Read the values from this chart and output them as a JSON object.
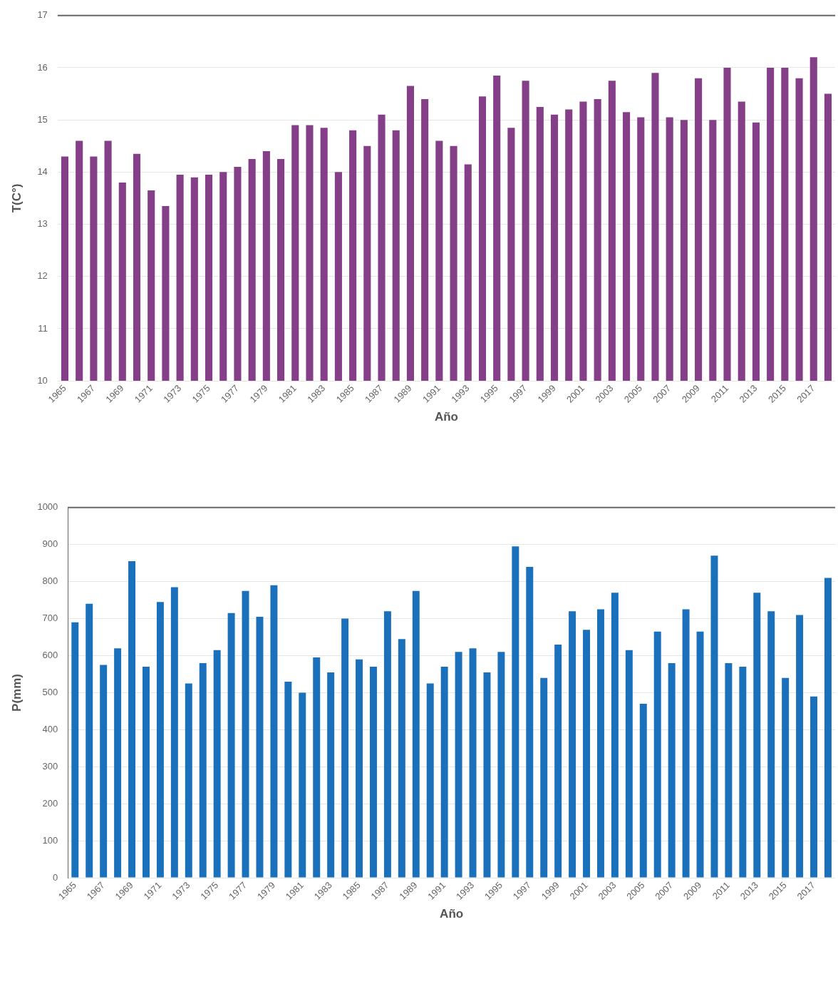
{
  "chart_data": [
    {
      "type": "bar",
      "xlabel": "Año",
      "ylabel": "T(C°)",
      "categories": [
        "1965",
        null,
        "1967",
        null,
        "1969",
        null,
        "1971",
        null,
        "1973",
        null,
        "1975",
        null,
        "1977",
        null,
        "1979",
        null,
        "1981",
        null,
        "1983",
        null,
        "1985",
        null,
        "1987",
        null,
        "1989",
        null,
        "1991",
        null,
        "1993",
        null,
        "1995",
        null,
        "1997",
        null,
        "1999",
        null,
        "2001",
        null,
        "2003",
        null,
        "2005",
        null,
        "2007",
        null,
        "2009",
        null,
        "2011",
        null,
        "2013",
        null,
        "2015",
        null,
        "2017",
        null
      ],
      "values": [
        14.3,
        14.6,
        14.3,
        14.6,
        13.8,
        14.35,
        13.65,
        13.35,
        13.95,
        13.9,
        13.95,
        14.0,
        14.1,
        14.25,
        14.4,
        14.25,
        14.9,
        14.9,
        14.85,
        14.0,
        14.8,
        14.5,
        15.1,
        14.8,
        15.65,
        15.4,
        14.6,
        14.5,
        14.15,
        15.45,
        15.85,
        14.85,
        15.75,
        15.25,
        15.1,
        15.2,
        15.35,
        15.4,
        15.75,
        15.15,
        15.05,
        15.9,
        15.05,
        15.0,
        15.8,
        15.0,
        16.0,
        15.35,
        14.95,
        16.0,
        16.0,
        15.8,
        16.2,
        15.5
      ],
      "color": "#843f88",
      "ylim": [
        10,
        17
      ],
      "yticks": [
        10,
        11,
        12,
        13,
        14,
        15,
        16,
        17
      ],
      "grid": "y"
    },
    {
      "type": "bar",
      "xlabel": "Año",
      "ylabel": "P(mm)",
      "categories": [
        "1965",
        null,
        "1967",
        null,
        "1969",
        null,
        "1971",
        null,
        "1973",
        null,
        "1975",
        null,
        "1977",
        null,
        "1979",
        null,
        "1981",
        null,
        "1983",
        null,
        "1985",
        null,
        "1987",
        null,
        "1989",
        null,
        "1991",
        null,
        "1993",
        null,
        "1995",
        null,
        "1997",
        null,
        "1999",
        null,
        "2001",
        null,
        "2003",
        null,
        "2005",
        null,
        "2007",
        null,
        "2009",
        null,
        "2011",
        null,
        "2013",
        null,
        "2015",
        null,
        "2017",
        null
      ],
      "values": [
        690,
        740,
        575,
        620,
        855,
        570,
        745,
        785,
        525,
        580,
        615,
        715,
        775,
        705,
        790,
        530,
        500,
        595,
        555,
        700,
        590,
        570,
        720,
        645,
        775,
        525,
        570,
        610,
        620,
        555,
        610,
        895,
        840,
        540,
        630,
        720,
        670,
        725,
        770,
        615,
        470,
        665,
        580,
        725,
        665,
        870,
        580,
        570,
        770,
        720,
        540,
        710,
        490,
        810
      ],
      "color": "#1a70bb",
      "ylim": [
        0,
        1000
      ],
      "yticks": [
        0,
        100,
        200,
        300,
        400,
        500,
        600,
        700,
        800,
        900,
        1000
      ],
      "grid": "y"
    }
  ]
}
